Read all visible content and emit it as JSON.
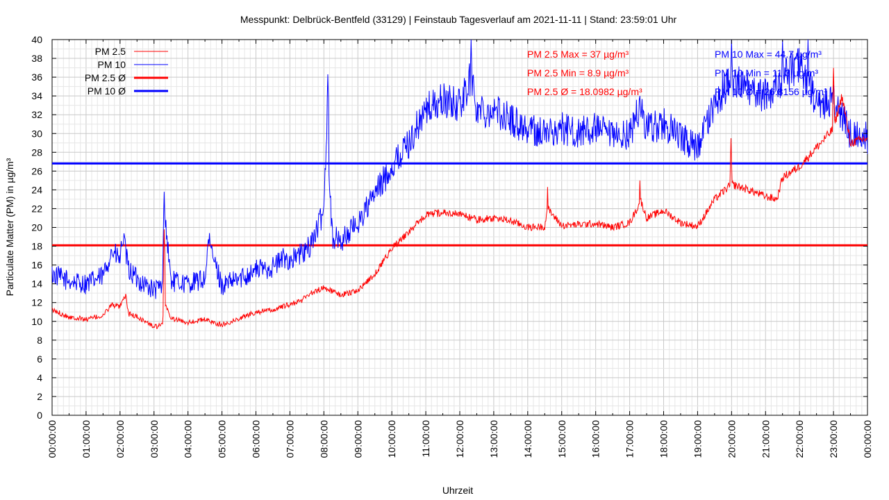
{
  "chart_data": {
    "type": "line",
    "title": "Messpunkt: Delbrück-Bentfeld (33129) | Feinstaub Tagesverlauf am 2021-11-11 | Stand: 23:59:01 Uhr",
    "xlabel": "Uhrzeit",
    "ylabel": "Particulate Matter (PM) in µg/m³",
    "ylim": [
      0,
      40
    ],
    "yticks": [
      "0",
      "2",
      "4",
      "6",
      "8",
      "10",
      "12",
      "14",
      "16",
      "18",
      "20",
      "22",
      "24",
      "26",
      "28",
      "30",
      "32",
      "34",
      "36",
      "38",
      "40"
    ],
    "xlim": [
      "00:00:00",
      "24:00:00"
    ],
    "xticks": [
      "00:00:00",
      "01:00:00",
      "02:00:00",
      "03:00:00",
      "04:00:00",
      "05:00:00",
      "06:00:00",
      "07:00:00",
      "08:00:00",
      "09:00:00",
      "10:00:00",
      "11:00:00",
      "12:00:00",
      "13:00:00",
      "14:00:00",
      "15:00:00",
      "16:00:00",
      "17:00:00",
      "18:00:00",
      "19:00:00",
      "20:00:00",
      "21:00:00",
      "22:00:00",
      "23:00:00",
      "00:00:00"
    ],
    "grid": true,
    "legend_position": "top-left",
    "colors": {
      "pm25": "#ff0000",
      "pm10": "#0000ff"
    },
    "series": [
      {
        "name": "PM 2.5",
        "color": "#ff0000",
        "x": [
          "00:00",
          "00:30",
          "01:00",
          "01:30",
          "01:45",
          "02:00",
          "02:10",
          "02:15",
          "02:30",
          "03:00",
          "03:15",
          "03:18",
          "03:30",
          "04:00",
          "04:30",
          "05:00",
          "05:30",
          "06:00",
          "06:30",
          "07:00",
          "07:20",
          "07:30",
          "08:00",
          "08:30",
          "09:00",
          "09:30",
          "10:00",
          "10:30",
          "11:00",
          "11:30",
          "12:00",
          "12:30",
          "13:00",
          "13:30",
          "14:00",
          "14:30",
          "14:35",
          "15:00",
          "15:30",
          "16:00",
          "16:30",
          "17:00",
          "17:20",
          "17:30",
          "18:00",
          "18:30",
          "19:00",
          "19:20",
          "19:30",
          "20:00",
          "20:30",
          "21:00",
          "21:20",
          "21:30",
          "22:00",
          "22:30",
          "23:00",
          "23:15",
          "23:30",
          "24:00"
        ],
        "y": [
          11.2,
          10.5,
          10.2,
          10.6,
          11.8,
          11.5,
          12.8,
          10.8,
          10.5,
          9.4,
          9.6,
          12.2,
          10.3,
          9.9,
          10.2,
          9.6,
          10.3,
          11.0,
          11.2,
          11.8,
          12.2,
          12.8,
          13.6,
          12.8,
          13.3,
          15.0,
          17.8,
          19.5,
          21.3,
          21.6,
          21.4,
          20.8,
          21.0,
          20.7,
          20.0,
          20.1,
          22.0,
          20.2,
          20.3,
          20.4,
          20.0,
          20.5,
          22.8,
          21.0,
          21.8,
          20.5,
          20.1,
          22.0,
          23.0,
          24.6,
          24.0,
          23.3,
          23.0,
          25.3,
          26.5,
          28.5,
          30.5,
          34.0,
          29.0,
          29.5
        ],
        "ticks": [],
        "peaks": [
          {
            "x": "03:18",
            "y": 19.8
          },
          {
            "x": "14:35",
            "y": 24.3
          },
          {
            "x": "17:18",
            "y": 25.0
          },
          {
            "x": "19:59",
            "y": 29.5
          },
          {
            "x": "23:00",
            "y": 37.0
          }
        ]
      },
      {
        "name": "PM 10",
        "color": "#0000ff",
        "x": [
          "00:00",
          "00:30",
          "01:00",
          "01:30",
          "01:45",
          "02:00",
          "02:05",
          "02:15",
          "02:30",
          "03:00",
          "03:15",
          "03:18",
          "03:30",
          "04:00",
          "04:30",
          "04:36",
          "05:00",
          "05:30",
          "06:00",
          "06:30",
          "06:50",
          "07:00",
          "07:30",
          "07:50",
          "08:00",
          "08:05",
          "08:15",
          "08:30",
          "09:00",
          "09:30",
          "10:00",
          "10:30",
          "11:00",
          "11:30",
          "12:00",
          "12:20",
          "12:30",
          "13:00",
          "13:30",
          "14:00",
          "14:30",
          "15:00",
          "15:30",
          "16:00",
          "16:30",
          "17:00",
          "17:20",
          "17:30",
          "18:00",
          "18:30",
          "19:00",
          "19:30",
          "20:00",
          "20:30",
          "21:00",
          "21:30",
          "22:00",
          "22:30",
          "23:00",
          "23:30",
          "24:00"
        ],
        "y": [
          15.0,
          14.3,
          14.0,
          14.8,
          17.5,
          16.5,
          19.0,
          15.5,
          14.5,
          13.3,
          13.8,
          22.0,
          14.3,
          14.0,
          14.5,
          18.5,
          13.8,
          14.5,
          15.5,
          15.8,
          16.8,
          16.5,
          17.5,
          20.0,
          22.0,
          31.0,
          19.0,
          18.5,
          20.5,
          23.5,
          26.5,
          29.0,
          32.5,
          33.5,
          33.0,
          36.0,
          32.5,
          32.5,
          31.5,
          30.5,
          30.0,
          30.5,
          30.0,
          30.5,
          29.5,
          30.0,
          33.0,
          30.5,
          31.0,
          29.5,
          28.5,
          33.0,
          36.0,
          34.5,
          34.0,
          36.0,
          37.5,
          33.0,
          33.5,
          30.0,
          29.5
        ],
        "peaks": [
          {
            "x": "03:18",
            "y": 23.8
          },
          {
            "x": "08:07",
            "y": 36.3
          },
          {
            "x": "12:20",
            "y": 40.0
          },
          {
            "x": "20:00",
            "y": 40.0
          },
          {
            "x": "21:30",
            "y": 40.0
          },
          {
            "x": "22:15",
            "y": 40.0
          }
        ]
      },
      {
        "name": "PM 2.5 Ø",
        "color": "#ff0000",
        "constant": 18.0982
      },
      {
        "name": "PM 10 Ø",
        "color": "#0000ff",
        "constant": 26.8156
      }
    ],
    "annotations": {
      "pm25": [
        "PM 2.5 Max = 37 µg/m³",
        "PM 2.5 Min = 8.9 µg/m³",
        "PM 2.5 Ø = 18.0982 µg/m³"
      ],
      "pm10": [
        "PM 10 Max = 44.7 µg/m³",
        "PM 10 Min = 11.3 µg/m³",
        "PM 10 Ø = 26.8156 µg/m³"
      ]
    }
  }
}
